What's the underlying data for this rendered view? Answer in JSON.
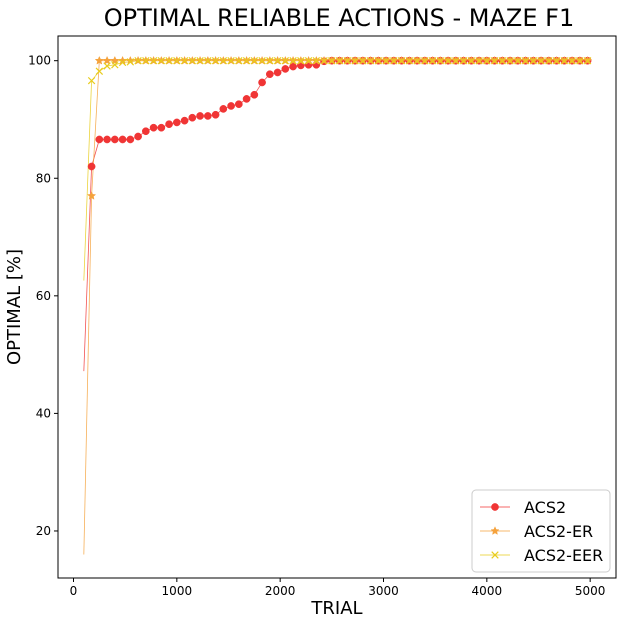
{
  "chart_data": {
    "type": "line",
    "title": "OPTIMAL RELIABLE ACTIONS - MAZE F1",
    "xlabel": "TRIAL",
    "ylabel": "OPTIMAL [%]",
    "xlim": [
      -150,
      5250
    ],
    "ylim": [
      12,
      104.2
    ],
    "xticks": [
      0,
      1000,
      2000,
      3000,
      4000,
      5000
    ],
    "yticks": [
      20,
      40,
      60,
      80,
      100
    ],
    "xtick_labels": [
      "0",
      "1000",
      "2000",
      "3000",
      "4000",
      "5000"
    ],
    "ytick_labels": [
      "20",
      "40",
      "60",
      "80",
      "100"
    ],
    "grid": false,
    "legend_position": "lower-right",
    "x": [
      100,
      175,
      250,
      325,
      400,
      475,
      550,
      625,
      700,
      775,
      850,
      925,
      1000,
      1075,
      1150,
      1225,
      1300,
      1375,
      1450,
      1525,
      1600,
      1675,
      1750,
      1825,
      1900,
      1975,
      2050,
      2125,
      2200,
      2275,
      2350,
      2425,
      2500,
      2575,
      2650,
      2725,
      2800,
      2875,
      2950,
      3025,
      3100,
      3175,
      3250,
      3325,
      3400,
      3475,
      3550,
      3625,
      3700,
      3775,
      3850,
      3925,
      4000,
      4075,
      4150,
      4225,
      4300,
      4375,
      4450,
      4525,
      4600,
      4675,
      4750,
      4825,
      4900,
      4975
    ],
    "series": [
      {
        "name": "ACS2",
        "color": "#f03535",
        "marker": "circle",
        "values": [
          47.2,
          82.0,
          86.6,
          86.6,
          86.6,
          86.6,
          86.6,
          87.1,
          88.0,
          88.6,
          88.6,
          89.2,
          89.5,
          89.8,
          90.3,
          90.6,
          90.6,
          90.8,
          91.8,
          92.3,
          92.6,
          93.5,
          94.2,
          96.3,
          97.7,
          98.0,
          98.6,
          99.0,
          99.2,
          99.3,
          99.3,
          99.9,
          100,
          100,
          100,
          100,
          100,
          100,
          100,
          100,
          100,
          100,
          100,
          100,
          100,
          100,
          100,
          100,
          100,
          100,
          100,
          100,
          100,
          100,
          100,
          100,
          100,
          100,
          100,
          100,
          100,
          100,
          100,
          100,
          100,
          100
        ]
      },
      {
        "name": "ACS2-ER",
        "color": "#f5a23c",
        "marker": "star",
        "values": [
          16.0,
          77.0,
          100,
          100,
          100,
          100,
          100,
          100,
          100,
          100,
          100,
          100,
          100,
          100,
          100,
          100,
          100,
          100,
          100,
          100,
          100,
          100,
          100,
          100,
          100,
          100,
          100,
          100,
          100,
          100,
          100,
          100,
          100,
          100,
          100,
          100,
          100,
          100,
          100,
          100,
          100,
          100,
          100,
          100,
          100,
          100,
          100,
          100,
          100,
          100,
          100,
          100,
          100,
          100,
          100,
          100,
          100,
          100,
          100,
          100,
          100,
          100,
          100,
          100,
          100,
          100
        ]
      },
      {
        "name": "ACS2-EER",
        "color": "#e8cc1c",
        "marker": "x",
        "values": [
          62.6,
          96.6,
          98.2,
          99.1,
          99.3,
          99.7,
          99.8,
          100,
          100,
          100,
          100,
          100,
          100,
          100,
          100,
          100,
          100,
          100,
          100,
          100,
          100,
          100,
          100,
          100,
          100,
          100,
          100,
          100,
          100,
          100,
          100,
          100,
          100,
          100,
          100,
          100,
          100,
          100,
          100,
          100,
          100,
          100,
          100,
          100,
          100,
          100,
          100,
          100,
          100,
          100,
          100,
          100,
          100,
          100,
          100,
          100,
          100,
          100,
          100,
          100,
          100,
          100,
          100,
          100,
          100,
          100
        ]
      }
    ]
  }
}
